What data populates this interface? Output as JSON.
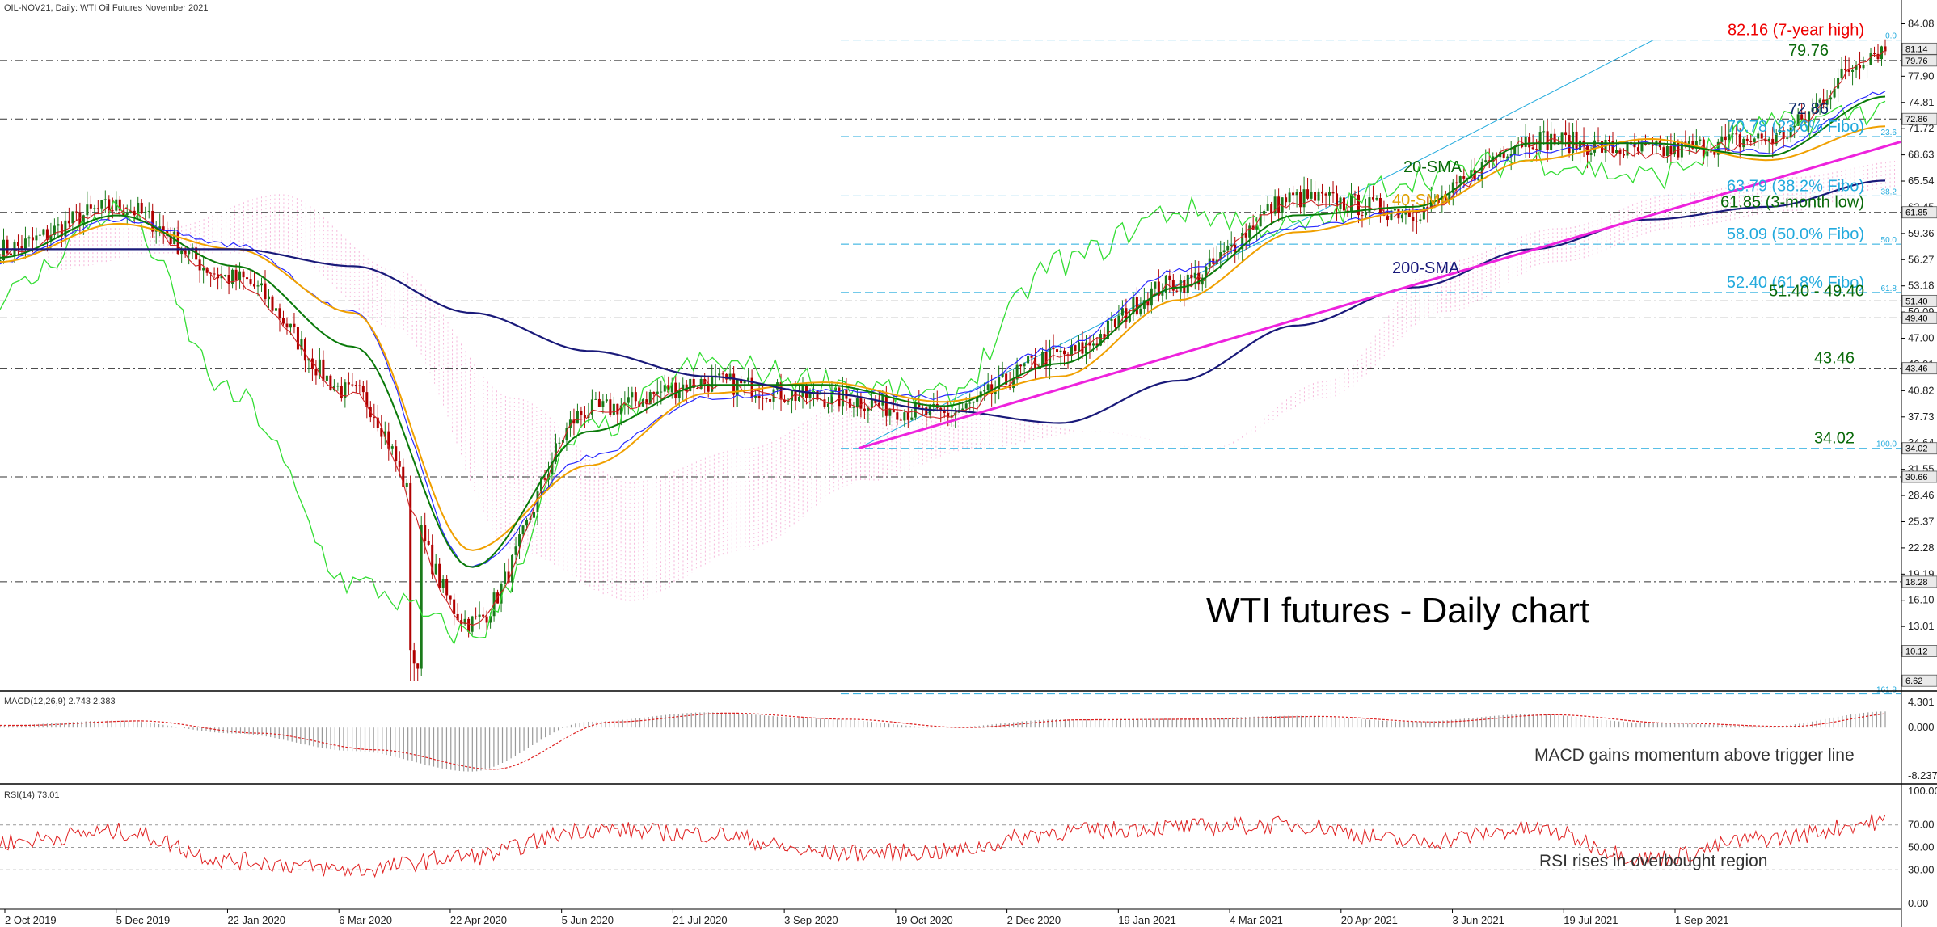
{
  "header": {
    "symbol_line": "OIL-NOV21, Daily:  WTI Oil Futures November 2021",
    "title": "WTI futures - Daily chart"
  },
  "colors": {
    "bull": "#1a7a1a",
    "bear": "#b00000",
    "sma20": "#0a7a0a",
    "sma40": "#f0a000",
    "sma200": "#1a1a7a",
    "kijun": "#2a2aff",
    "tenkan": "#cc2222",
    "chikou": "#33dd33",
    "cloud": "#f080c0",
    "trend": "#ee22dd",
    "fibo": "#22aadd",
    "level_red": "#ee0000",
    "level_green": "#0a6a0a",
    "level_blue": "#18187a"
  },
  "price_axis_labels": [
    "84.08",
    "80.98",
    "77.90",
    "74.81",
    "71.72",
    "68.63",
    "65.54",
    "62.45",
    "59.36",
    "56.27",
    "53.18",
    "50.09",
    "47.00",
    "43.91",
    "40.82",
    "37.73",
    "34.64",
    "31.55",
    "28.46",
    "25.37",
    "22.28",
    "19.19",
    "16.10",
    "13.01",
    "9.92",
    "6.83"
  ],
  "price_tags": [
    "81.14",
    "79.76",
    "72.86",
    "61.85",
    "51.40",
    "49.40",
    "43.46",
    "34.02",
    "30.66",
    "18.28",
    "10.12",
    "6.62"
  ],
  "date_labels": [
    "2 Oct 2019",
    "5 Dec 2019",
    "22 Jan 2020",
    "6 Mar 2020",
    "22 Apr 2020",
    "5 Jun 2020",
    "21 Jul 2020",
    "3 Sep 2020",
    "19 Oct 2020",
    "2 Dec 2020",
    "19 Jan 2021",
    "4 Mar 2021",
    "20 Apr 2021",
    "3 Jun 2021",
    "19 Jul 2021",
    "1 Sep 2021"
  ],
  "levels": [
    {
      "value": 82.16,
      "label": "82.16 (7-year high)",
      "style": "fibo"
    },
    {
      "value": 79.76,
      "label": "79.76",
      "style": "dash"
    },
    {
      "value": 72.86,
      "label": "72.86",
      "style": "dash"
    },
    {
      "value": 70.78,
      "label": "70.78 (23.6% Fibo)",
      "style": "fibo"
    },
    {
      "value": 63.79,
      "label": "63.79 (38.2% Fibo)",
      "style": "fibo"
    },
    {
      "value": 61.85,
      "label": "61.85 (3-month low)",
      "style": "dash"
    },
    {
      "value": 58.09,
      "label": "58.09 (50.0% Fibo)",
      "style": "fibo"
    },
    {
      "value": 52.4,
      "label": "52.40 (61.8% Fibo)",
      "style": "fibo"
    },
    {
      "value": 51.4,
      "label": "51.40 - 49.40",
      "style": "dash"
    },
    {
      "value": 49.4,
      "label": "",
      "style": "dash"
    },
    {
      "value": 43.46,
      "label": "43.46",
      "style": "dash"
    },
    {
      "value": 34.02,
      "label": "34.02",
      "style": "fibo"
    },
    {
      "value": 30.66,
      "label": "",
      "style": "dash"
    },
    {
      "value": 18.28,
      "label": "",
      "style": "dash"
    },
    {
      "value": 10.12,
      "label": "",
      "style": "dash"
    },
    {
      "value": 5.05,
      "label": "",
      "style": "fibo"
    }
  ],
  "fibo_pct_labels": [
    "0.0",
    "23.6",
    "38.2",
    "50.0",
    "61.8",
    "100.0",
    "161.8"
  ],
  "annotations": {
    "sma20": "20-SMA",
    "sma40": "40-SMA",
    "sma200": "200-SMA"
  },
  "macd": {
    "header": "MACD(12,26,9) 2.743 2.383",
    "axis_labels": [
      "4.301",
      "0.000",
      "-8.237"
    ],
    "note": "MACD gains momentum above trigger line"
  },
  "rsi": {
    "header": "RSI(14) 73.01",
    "axis_labels": [
      "100.00",
      "70.00",
      "50.00",
      "30.00",
      "0.00"
    ],
    "note": "RSI rises in overbought region"
  },
  "chart_data": [
    {
      "type": "candlestick",
      "title": "WTI futures - Daily chart",
      "ylim": [
        5,
        86
      ],
      "x": [
        "2 Oct 2019",
        "5 Dec 2019",
        "22 Jan 2020",
        "6 Mar 2020",
        "22 Apr 2020",
        "5 Jun 2020",
        "21 Jul 2020",
        "3 Sep 2020",
        "19 Oct 2020",
        "2 Dec 2020",
        "19 Jan 2021",
        "4 Mar 2021",
        "20 Apr 2021",
        "3 Jun 2021",
        "19 Jul 2021",
        "1 Sep 2021",
        "13 Oct 2021"
      ],
      "close": [
        57.5,
        62.5,
        54.0,
        40.5,
        13.5,
        38.5,
        41.8,
        40.0,
        38.0,
        45.0,
        53.5,
        63.5,
        62.0,
        70.5,
        69.0,
        70.5,
        81.1
      ],
      "series": [
        {
          "name": "20-SMA",
          "values": [
            56.5,
            61.5,
            55.5,
            46.0,
            20.0,
            36.0,
            41.5,
            41.5,
            39.0,
            44.0,
            53.0,
            61.5,
            62.5,
            70.0,
            70.0,
            68.5,
            75.5
          ]
        },
        {
          "name": "40-SMA",
          "values": [
            56.0,
            60.5,
            57.5,
            50.0,
            22.0,
            32.0,
            40.5,
            41.8,
            39.5,
            42.5,
            51.5,
            59.5,
            62.0,
            68.0,
            70.5,
            68.0,
            72.0
          ]
        },
        {
          "name": "200-SMA",
          "values": [
            57.5,
            57.5,
            57.5,
            55.5,
            50.0,
            45.5,
            42.5,
            40.5,
            38.5,
            37.0,
            42.0,
            48.5,
            53.0,
            57.5,
            61.0,
            62.5,
            65.6
          ]
        }
      ],
      "trendline": {
        "from": [
          34.02,
          "30 Oct 2020"
        ],
        "to": [
          65.6,
          "13 Oct 2021"
        ]
      },
      "fibonacci": {
        "high": 82.16,
        "low": 34.02
      }
    },
    {
      "type": "bar",
      "title": "MACD(12,26,9)",
      "last": [
        2.743,
        2.383
      ],
      "ylim": [
        -8.237,
        4.301
      ]
    },
    {
      "type": "line",
      "title": "RSI(14)",
      "last": 73.01,
      "ylim": [
        0,
        100
      ],
      "x": [
        "2 Oct 2019",
        "5 Dec 2019",
        "22 Jan 2020",
        "6 Mar 2020",
        "22 Apr 2020",
        "5 Jun 2020",
        "21 Jul 2020",
        "3 Sep 2020",
        "19 Oct 2020",
        "2 Dec 2020",
        "19 Jan 2021",
        "4 Mar 2021",
        "20 Apr 2021",
        "3 Jun 2021",
        "19 Jul 2021",
        "1 Sep 2021",
        "13 Oct 2021"
      ],
      "values": [
        55,
        64,
        38,
        30,
        42,
        66,
        62,
        45,
        46,
        64,
        68,
        70,
        55,
        66,
        40,
        58,
        73.01
      ]
    }
  ]
}
